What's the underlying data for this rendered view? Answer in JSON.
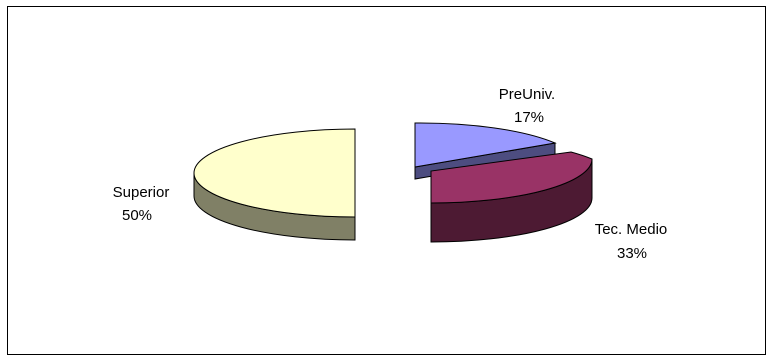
{
  "chart_data": {
    "type": "pie",
    "style": "3d-exploded",
    "legend": "none",
    "slices": [
      {
        "category": "PreUniv.",
        "value": 17,
        "value_label": "17%",
        "top_color": "#9999ff",
        "side_color": "#4d4d80"
      },
      {
        "category": "Tec. Medio",
        "value": 33,
        "value_label": "33%",
        "top_color": "#993366",
        "side_color": "#4d1a33"
      },
      {
        "category": "Superior",
        "value": 50,
        "value_label": "50%",
        "top_color": "#ffffcc",
        "side_color": "#808066"
      }
    ]
  }
}
